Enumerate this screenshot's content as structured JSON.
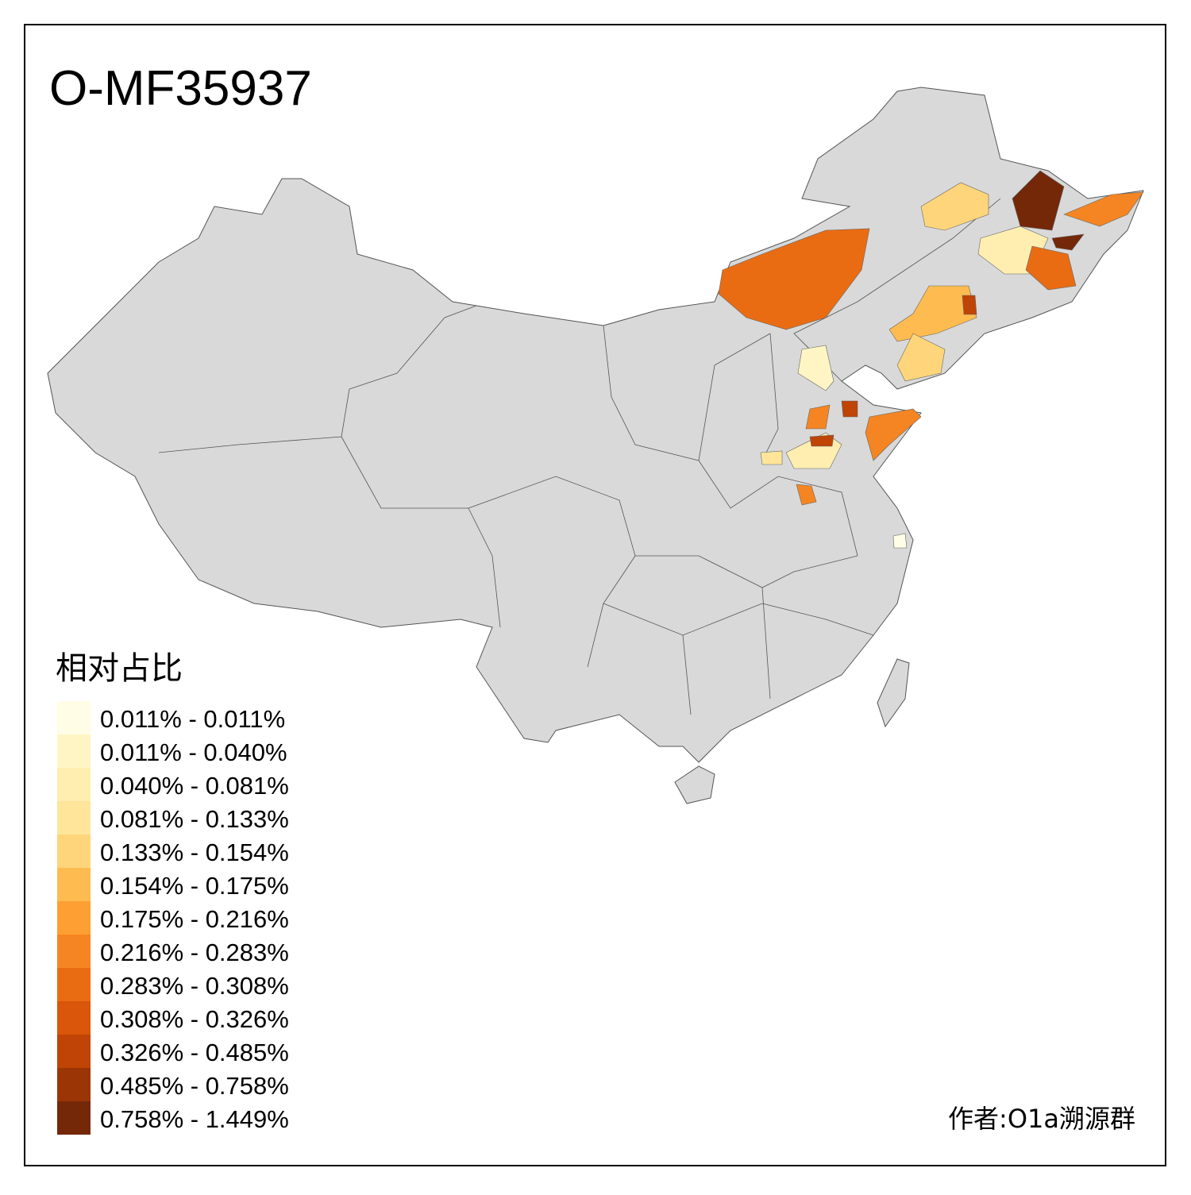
{
  "title": "O-MF35937",
  "legend": {
    "title": "相对占比",
    "items": [
      {
        "label": "0.011% - 0.011%",
        "color": "#fffde6"
      },
      {
        "label": "0.011% - 0.040%",
        "color": "#fff5c4"
      },
      {
        "label": "0.040% - 0.081%",
        "color": "#ffeeb0"
      },
      {
        "label": "0.081% - 0.133%",
        "color": "#fee59a"
      },
      {
        "label": "0.133% - 0.154%",
        "color": "#fed57a"
      },
      {
        "label": "0.154% - 0.175%",
        "color": "#febb50"
      },
      {
        "label": "0.175% - 0.216%",
        "color": "#fd9f32"
      },
      {
        "label": "0.216% - 0.283%",
        "color": "#f58522"
      },
      {
        "label": "0.283% - 0.308%",
        "color": "#e96c13"
      },
      {
        "label": "0.308% - 0.326%",
        "color": "#d9560a"
      },
      {
        "label": "0.326% - 0.485%",
        "color": "#bf4405"
      },
      {
        "label": "0.485% - 0.758%",
        "color": "#9b3506"
      },
      {
        "label": "0.758% - 1.449%",
        "color": "#742808"
      }
    ]
  },
  "credit": "作者:O1a溯源群"
}
